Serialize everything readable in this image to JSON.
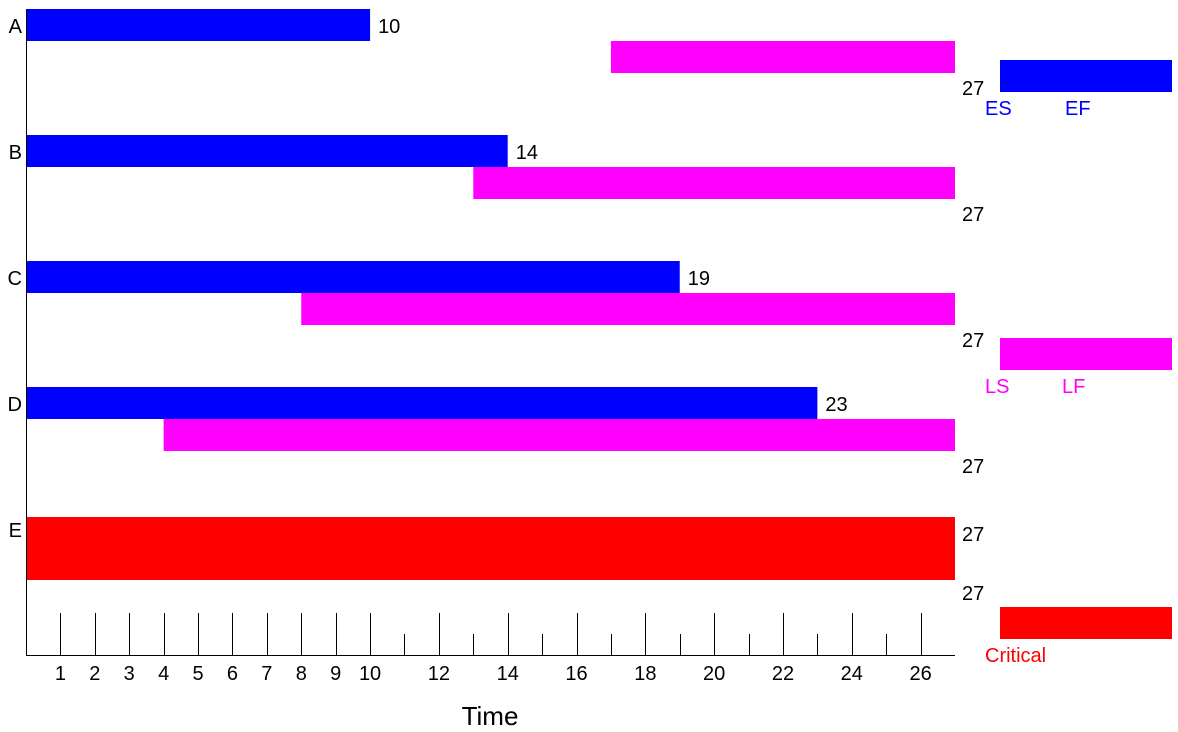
{
  "chart_data": {
    "type": "gantt",
    "xlabel": "Time",
    "xlim": [
      0,
      27
    ],
    "x_ticks_major": [
      1,
      2,
      3,
      4,
      5,
      6,
      7,
      8,
      9,
      10,
      12,
      14,
      16,
      18,
      20,
      22,
      24,
      26
    ],
    "x_ticks_minor": [
      11,
      13,
      15,
      17,
      19,
      21,
      23,
      25
    ],
    "colors": {
      "early": "#0000ff",
      "late": "#ff00ff",
      "critical": "#ff0000",
      "text": "#000000"
    },
    "tasks": [
      {
        "name": "A",
        "es": 0,
        "ef": 10,
        "ls": 17,
        "lf": 27,
        "critical": false,
        "ef_label": "10",
        "lf_label": "27"
      },
      {
        "name": "B",
        "es": 0,
        "ef": 14,
        "ls": 13,
        "lf": 27,
        "critical": false,
        "ef_label": "14",
        "lf_label": "27"
      },
      {
        "name": "C",
        "es": 0,
        "ef": 19,
        "ls": 8,
        "lf": 27,
        "critical": false,
        "ef_label": "19",
        "lf_label": "27"
      },
      {
        "name": "D",
        "es": 0,
        "ef": 23,
        "ls": 4,
        "lf": 27,
        "critical": false,
        "ef_label": "23",
        "lf_label": "27"
      },
      {
        "name": "E",
        "es": 0,
        "ef": 27,
        "ls": 0,
        "lf": 27,
        "critical": true,
        "ef_label": "27",
        "lf_label": "27"
      }
    ],
    "legend": {
      "placement": "right",
      "early": {
        "label_start": "ES",
        "label_end": "EF"
      },
      "late": {
        "label_start": "LS",
        "label_end": "LF"
      },
      "critical": {
        "label": "Critical"
      }
    }
  }
}
